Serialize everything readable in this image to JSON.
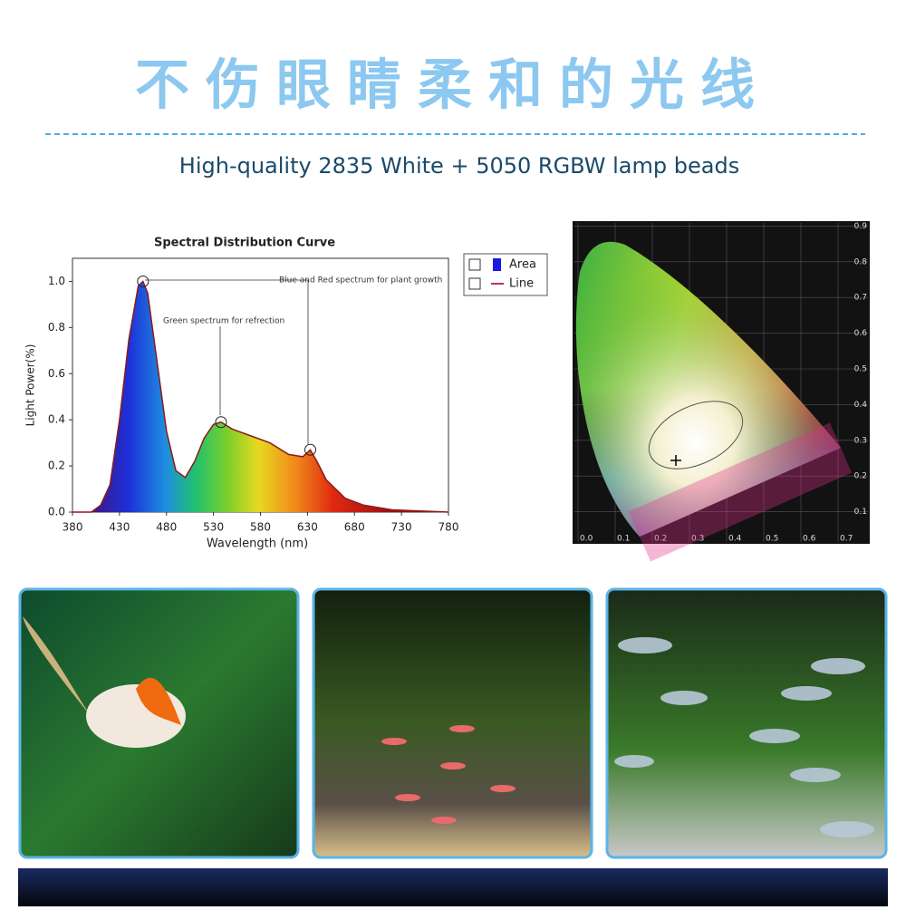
{
  "header": {
    "title": "不伤眼睛柔和的光线",
    "subtitle": "High-quality 2835 White + 5050 RGBW lamp beads"
  },
  "chart_data": {
    "type": "area",
    "title": "Spectral Distribution Curve",
    "x_label": "Wavelength  (nm)",
    "y_label": "Light Power(%)",
    "x": [
      380,
      400,
      410,
      420,
      430,
      440,
      450,
      455,
      460,
      470,
      480,
      490,
      500,
      510,
      520,
      530,
      538,
      550,
      570,
      590,
      610,
      625,
      633,
      640,
      650,
      670,
      690,
      720,
      780
    ],
    "values": [
      0,
      0,
      0.03,
      0.12,
      0.4,
      0.75,
      0.98,
      1.0,
      0.95,
      0.65,
      0.35,
      0.18,
      0.15,
      0.22,
      0.32,
      0.38,
      0.39,
      0.36,
      0.33,
      0.3,
      0.25,
      0.24,
      0.27,
      0.22,
      0.14,
      0.06,
      0.03,
      0.01,
      0
    ],
    "xlim": [
      380,
      780
    ],
    "ylim": [
      0,
      1.1
    ],
    "xticks": [
      380,
      430,
      480,
      530,
      580,
      630,
      680,
      730,
      780
    ],
    "yticks": [
      {
        "value": 0,
        "label": "0.0"
      },
      {
        "value": 0.2,
        "label": "0.2"
      },
      {
        "value": 0.4,
        "label": "0.4"
      },
      {
        "value": 0.6,
        "label": "0.6"
      },
      {
        "value": 0.8,
        "label": "0.8"
      },
      {
        "value": 1.0,
        "label": "1.0"
      }
    ],
    "line_color": "#8b1a1a",
    "legend": [
      "Area",
      "Line"
    ],
    "annotations": [
      "Blue and Red spectrum for plant growth",
      "Green spectrum for refrection"
    ]
  },
  "cie": {
    "x_labels": [
      "0.0",
      "0.1",
      "0.2",
      "0.3",
      "0.4",
      "0.5",
      "0.6",
      "0.7"
    ],
    "y_labels": [
      "0.1",
      "0.2",
      "0.3",
      "0.4",
      "0.5",
      "0.6",
      "0.7",
      "0.8",
      "0.9"
    ]
  }
}
